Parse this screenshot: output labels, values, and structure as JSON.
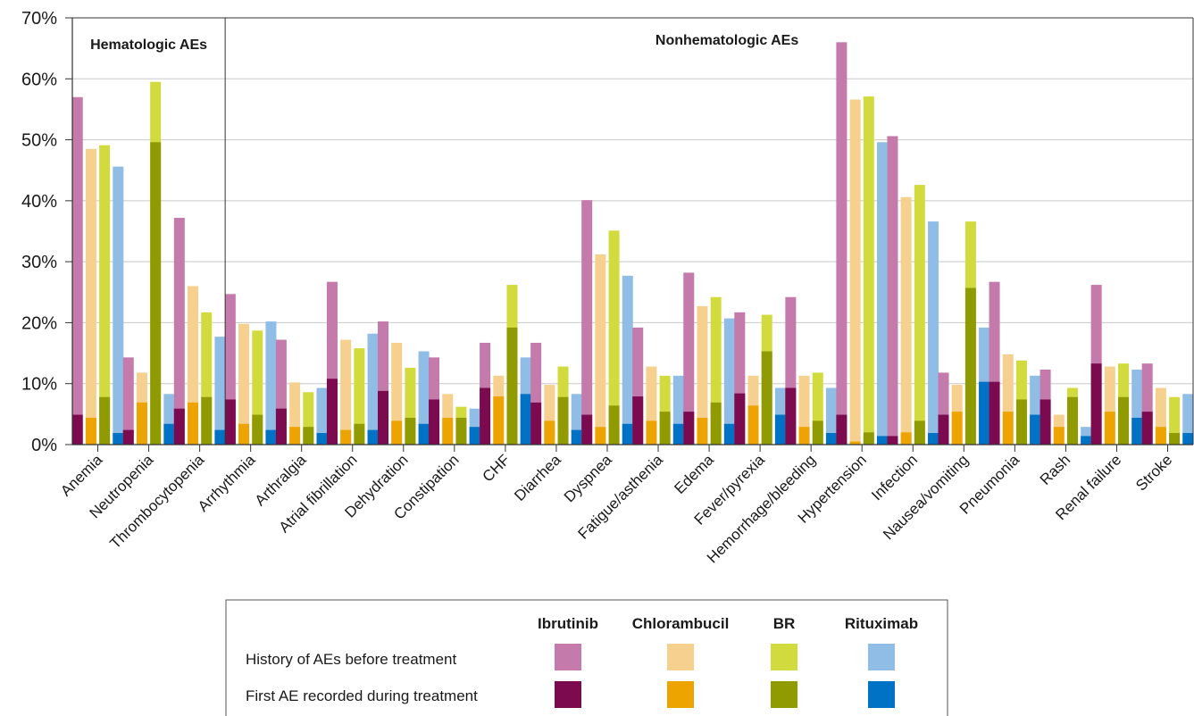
{
  "chart_data": {
    "type": "bar",
    "stacked_overlay": true,
    "y_tick_labels": [
      "0%",
      "10%",
      "20%",
      "30%",
      "40%",
      "50%",
      "60%",
      "70%"
    ],
    "ylim": [
      0,
      70
    ],
    "regions": [
      {
        "label": "Hematologic AEs",
        "categories": [
          "Anemia",
          "Neutropenia",
          "Thrombocytopenia"
        ]
      },
      {
        "label": "Nonhematologic AEs",
        "categories": [
          "Arrhythmia",
          "Arthralgia",
          "Atrial fibrillation",
          "Dehydration",
          "Constipation",
          "CHF",
          "Diarrhea",
          "Dyspnea",
          "Fatigue/asthenia",
          "Edema",
          "Fever/pyrexia",
          "Hemorrhage/bleeding",
          "Hypertension",
          "Infection",
          "Nausea/vomiting",
          "Pneumonia",
          "Rash",
          "Renal failure",
          "Stroke"
        ]
      }
    ],
    "categories": [
      "Anemia",
      "Neutropenia",
      "Thrombocytopenia",
      "Arrhythmia",
      "Arthralgia",
      "Atrial fibrillation",
      "Dehydration",
      "Constipation",
      "CHF",
      "Diarrhea",
      "Dyspnea",
      "Fatigue/asthenia",
      "Edema",
      "Fever/pyrexia",
      "Hemorrhage/bleeding",
      "Hypertension",
      "Infection",
      "Nausea/vomiting",
      "Pneumonia",
      "Rash",
      "Renal failure",
      "Stroke"
    ],
    "series": [
      {
        "name": "Ibrutinib",
        "history_color": "#c47aaa",
        "first_color": "#7b0a4f",
        "history": [
          57,
          14.3,
          37.2,
          24.7,
          17.2,
          26.7,
          20.2,
          14.3,
          16.7,
          16.7,
          40.1,
          19.2,
          28.2,
          21.7,
          24.2,
          66,
          50.6,
          11.8,
          26.7,
          12.3,
          26.2,
          13.3
        ],
        "first": [
          4.9,
          2.4,
          5.9,
          7.4,
          5.9,
          10.8,
          8.8,
          7.4,
          9.3,
          6.9,
          4.9,
          7.9,
          5.4,
          8.4,
          9.3,
          4.9,
          1.4,
          4.9,
          10.3,
          7.4,
          13.3,
          5.4
        ]
      },
      {
        "name": "Chlorambucil",
        "history_color": "#f6d08e",
        "first_color": "#eda400",
        "history": [
          48.5,
          11.8,
          26,
          19.8,
          10.2,
          17.2,
          16.7,
          8.3,
          11.3,
          9.8,
          31.2,
          12.8,
          22.7,
          11.3,
          11.3,
          56.6,
          40.6,
          9.8,
          14.8,
          4.9,
          12.8,
          9.3
        ],
        "first": [
          4.4,
          6.9,
          6.9,
          3.4,
          2.9,
          2.4,
          3.9,
          4.4,
          7.9,
          3.9,
          2.9,
          3.9,
          4.4,
          6.4,
          2.9,
          0.5,
          2,
          5.4,
          5.4,
          2.9,
          5.4,
          2.9
        ]
      },
      {
        "name": "BR",
        "history_color": "#d2db3e",
        "first_color": "#8f9b00",
        "history": [
          49.1,
          59.5,
          21.7,
          18.7,
          8.6,
          15.8,
          12.6,
          6.2,
          26.2,
          12.8,
          35.1,
          11.3,
          24.2,
          21.3,
          11.8,
          57.1,
          42.6,
          36.6,
          13.8,
          9.3,
          13.3,
          7.8
        ],
        "first": [
          7.8,
          49.6,
          7.8,
          4.9,
          2.9,
          3.4,
          4.4,
          4.4,
          19.2,
          7.8,
          6.4,
          5.4,
          6.9,
          15.3,
          3.9,
          2,
          3.9,
          25.7,
          7.4,
          7.8,
          7.8,
          1.9
        ]
      },
      {
        "name": "Rituximab",
        "history_color": "#8fbde6",
        "first_color": "#0072c6",
        "history": [
          45.6,
          8.3,
          17.7,
          20.2,
          9.3,
          18.2,
          15.3,
          5.9,
          14.3,
          8.3,
          27.7,
          11.3,
          20.7,
          9.3,
          9.3,
          49.6,
          36.6,
          19.2,
          11.3,
          2.9,
          12.3,
          8.3
        ],
        "first": [
          1.9,
          3.4,
          2.4,
          2.4,
          1.9,
          2.4,
          3.4,
          2.9,
          8.3,
          2.4,
          3.4,
          3.4,
          3.4,
          4.9,
          1.9,
          1.4,
          1.9,
          10.3,
          4.9,
          1.4,
          4.4,
          1.9
        ]
      }
    ],
    "legend": {
      "placement": "bottom-center",
      "rows": [
        "History of AEs before treatment",
        "First AE recorded during treatment"
      ]
    }
  }
}
